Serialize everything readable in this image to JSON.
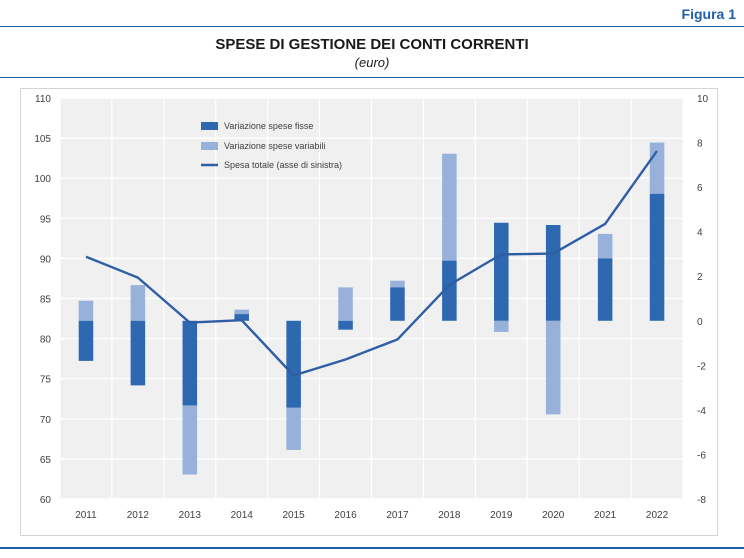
{
  "header": {
    "figure_label": "Figura 1",
    "title": "SPESE DI GESTIONE DEI CONTI CORRENTI",
    "subtitle": "(euro)"
  },
  "colors": {
    "accent": "#1f5fa8",
    "fixed": "#2e68b0",
    "variable": "#98b1db",
    "line": "#2e5ea6",
    "plot_bg": "#f0f0f0"
  },
  "chart_data": {
    "type": "bar",
    "categories": [
      "2011",
      "2012",
      "2013",
      "2014",
      "2015",
      "2016",
      "2017",
      "2018",
      "2019",
      "2020",
      "2021",
      "2022"
    ],
    "series": [
      {
        "name": "Variazione spese fisse",
        "type": "bar",
        "axis": "right",
        "values": [
          -1.8,
          -2.9,
          -3.8,
          0.3,
          -3.9,
          -0.4,
          1.5,
          2.7,
          4.4,
          4.3,
          2.8,
          5.7
        ]
      },
      {
        "name": "Variazione spese variabili",
        "type": "bar",
        "axis": "right",
        "values": [
          0.9,
          1.6,
          -3.1,
          0.2,
          -1.9,
          1.5,
          0.3,
          4.8,
          -0.5,
          -4.2,
          1.1,
          2.3
        ]
      },
      {
        "name": "Spesa totale (asse di sinistra)",
        "type": "line",
        "axis": "left",
        "values": [
          90.2,
          87.6,
          82.0,
          82.3,
          75.4,
          77.4,
          79.9,
          86.7,
          90.5,
          90.6,
          94.3,
          103.4
        ]
      }
    ],
    "left_axis": {
      "ylim": [
        60,
        110
      ],
      "ticks": [
        "60",
        "65",
        "70",
        "75",
        "80",
        "85",
        "90",
        "95",
        "100",
        "105",
        "110"
      ]
    },
    "right_axis": {
      "ylim": [
        -8,
        10
      ],
      "ticks": [
        "-8",
        "-6",
        "-4",
        "-2",
        "0",
        "2",
        "4",
        "6",
        "8",
        "10"
      ]
    },
    "grid": true,
    "legend_position": "top-center"
  }
}
